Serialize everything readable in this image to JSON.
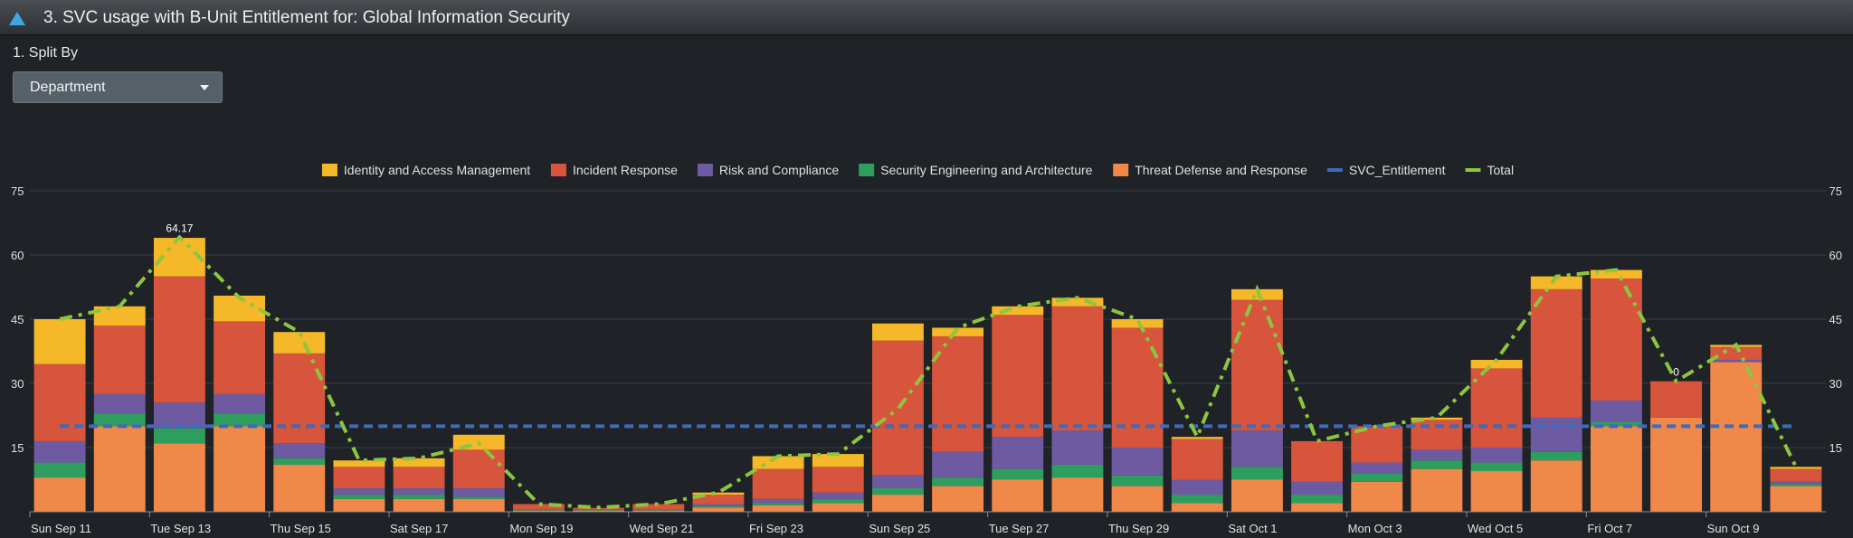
{
  "header": {
    "title": "3. SVC usage with B-Unit Entitlement for: Global Information Security",
    "icon": "triangle-icon",
    "icon_color": "#3fa8e0"
  },
  "controls": {
    "split_by_label": "1. Split By",
    "split_by_value": "Department"
  },
  "colors": {
    "background": "#1f2226",
    "gridline": "#3a3e44",
    "axis_text": "#e0e0e0"
  },
  "chart_data": {
    "type": "bar",
    "stacked": true,
    "ylim": [
      0,
      75
    ],
    "yticks": [
      15,
      30,
      45,
      60,
      75
    ],
    "grid": true,
    "legend_position": "top",
    "dual_y_axis": true,
    "x_labels": [
      "Sun Sep 11",
      "Tue Sep 13",
      "Thu Sep 15",
      "Sat Sep 17",
      "Mon Sep 19",
      "Wed Sep 21",
      "Fri Sep 23",
      "Sun Sep 25",
      "Tue Sep 27",
      "Thu Sep 29",
      "Sat Oct 1",
      "Mon Oct 3",
      "Wed Oct 5",
      "Fri Oct 7",
      "Sun Oct 9"
    ],
    "categories": [
      "Sep 11",
      "Sep 12",
      "Sep 13",
      "Sep 14",
      "Sep 15",
      "Sep 16",
      "Sep 17",
      "Sep 18",
      "Sep 19",
      "Sep 20",
      "Sep 21",
      "Sep 22",
      "Sep 23",
      "Sep 24",
      "Sep 25",
      "Sep 26",
      "Sep 27",
      "Sep 28",
      "Sep 29",
      "Sep 30",
      "Oct 1",
      "Oct 2",
      "Oct 3",
      "Oct 4",
      "Oct 5",
      "Oct 6",
      "Oct 7",
      "Oct 8",
      "Oct 9",
      "Oct 10"
    ],
    "series": [
      {
        "name": "Threat Defense and Response",
        "color": "#f0884a",
        "values": [
          8,
          20,
          16,
          20,
          11,
          3,
          3,
          3,
          0.3,
          0.3,
          0.3,
          1,
          1.5,
          2,
          4,
          6,
          7.5,
          8,
          6,
          2,
          7.5,
          2,
          7,
          10,
          9.5,
          12,
          20,
          22,
          35,
          6
        ]
      },
      {
        "name": "Security Engineering and Architecture",
        "color": "#2e9e5e",
        "values": [
          3.5,
          3,
          3.5,
          3,
          1.5,
          1,
          1,
          0.5,
          0.1,
          0.1,
          0.1,
          0.3,
          0.5,
          1,
          1.5,
          2,
          2.5,
          3,
          2.5,
          2,
          3,
          2,
          2,
          2,
          2,
          2,
          1,
          0,
          0,
          0.5
        ]
      },
      {
        "name": "Risk and Compliance",
        "color": "#6e5aa0",
        "values": [
          5,
          4.5,
          6,
          4.5,
          3.5,
          1.5,
          1.5,
          2,
          0.1,
          0.1,
          0.1,
          0.5,
          1,
          1.5,
          3,
          6,
          7.5,
          8,
          6.5,
          3.5,
          8.5,
          3,
          2.5,
          2.5,
          3.5,
          8,
          5,
          0,
          0.5,
          0.5
        ]
      },
      {
        "name": "Incident Response",
        "color": "#d7553c",
        "values": [
          18,
          16,
          29.5,
          17,
          21,
          5,
          5,
          9,
          1.3,
          0.4,
          1.3,
          2.2,
          7,
          6,
          31.5,
          27,
          28.5,
          29,
          28,
          9.5,
          30.5,
          9.5,
          8.5,
          7,
          18.5,
          30,
          28.5,
          8.5,
          3,
          3
        ]
      },
      {
        "name": "Identity and Access Management",
        "color": "#f4b828",
        "values": [
          10.5,
          4.5,
          9,
          6,
          5,
          1.5,
          2,
          3.5,
          0,
          0,
          0,
          0.5,
          3,
          3,
          4,
          2,
          2,
          2,
          2,
          0.5,
          2.5,
          0,
          0,
          0.5,
          2,
          3,
          2,
          0,
          0.5,
          0.5
        ]
      }
    ],
    "lines": [
      {
        "name": "SVC_Entitlement",
        "color": "#3d6bbd",
        "style": "dashed",
        "values": [
          20,
          20,
          20,
          20,
          20,
          20,
          20,
          20,
          20,
          20,
          20,
          20,
          20,
          20,
          20,
          20,
          20,
          20,
          20,
          20,
          20,
          20,
          20,
          20,
          20,
          20,
          20,
          20,
          20,
          20
        ]
      },
      {
        "name": "Total",
        "color": "#8cc63f",
        "style": "dashdot",
        "values": [
          45,
          48,
          64.17,
          50,
          42,
          12,
          12.5,
          16,
          1.8,
          1,
          1.8,
          4.5,
          13,
          13.5,
          24,
          43,
          48,
          50,
          45,
          17.5,
          52,
          16.5,
          20,
          22,
          35.5,
          55,
          56.5,
          30.5,
          39,
          10.5
        ]
      }
    ],
    "data_labels": [
      {
        "index": 2,
        "text": "64.17"
      },
      {
        "index": 27,
        "text": "0"
      }
    ],
    "legend": [
      "Identity and Access Management",
      "Incident Response",
      "Risk and Compliance",
      "Security Engineering and Architecture",
      "Threat Defense and Response",
      "SVC_Entitlement",
      "Total"
    ]
  }
}
